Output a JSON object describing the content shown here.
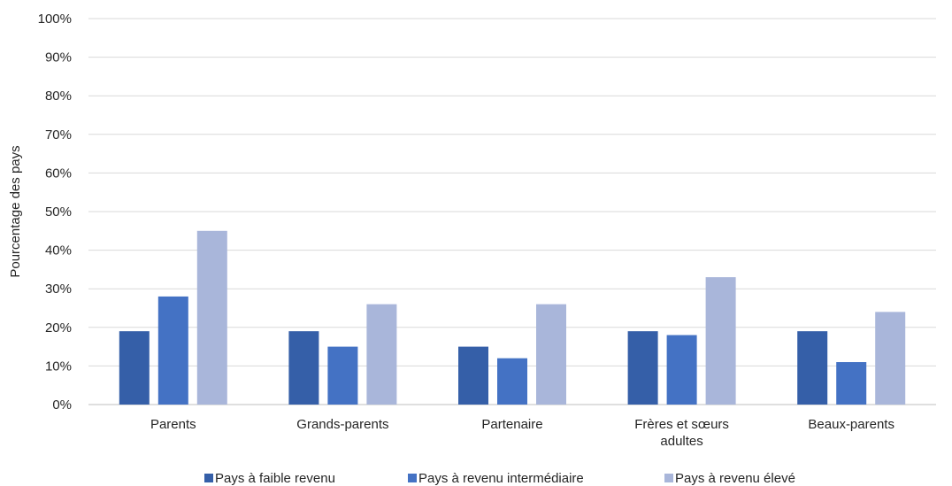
{
  "chart_data": {
    "type": "bar",
    "title": "",
    "xlabel": "",
    "ylabel": "Pourcentage des pays",
    "ylim": [
      0,
      100
    ],
    "yticks": [
      "0%",
      "10%",
      "20%",
      "30%",
      "40%",
      "50%",
      "60%",
      "70%",
      "80%",
      "90%",
      "100%"
    ],
    "grid": true,
    "legend_position": "bottom",
    "categories": [
      [
        "Parents"
      ],
      [
        "Grands-parents"
      ],
      [
        "Partenaire"
      ],
      [
        "Frères et sœurs",
        "adultes"
      ],
      [
        "Beaux-parents"
      ]
    ],
    "series": [
      {
        "name": "Pays à faible revenu",
        "color": "#355FA8",
        "values": [
          19,
          19,
          15,
          19,
          19
        ]
      },
      {
        "name": "Pays à revenu intermédiaire",
        "color": "#4472C4",
        "values": [
          28,
          15,
          12,
          18,
          11
        ]
      },
      {
        "name": "Pays à revenu élevé",
        "color": "#A9B6DA",
        "values": [
          45,
          26,
          26,
          33,
          24
        ]
      }
    ]
  }
}
